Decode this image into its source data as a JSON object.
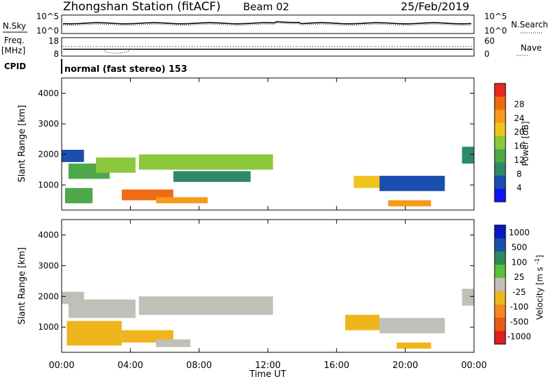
{
  "header": {
    "station": "Zhongshan Station (fitACF)",
    "beam": "Beam 02",
    "date": "25/Feb/2019"
  },
  "noise_panel": {
    "left_label": "N.Sky",
    "right_label": "N.Search",
    "left_ticks": [
      "10^5",
      "10^0"
    ],
    "right_ticks": [
      "10^5",
      "10^0"
    ]
  },
  "freq_panel": {
    "left_label_1": "Freq.",
    "left_label_2": "[MHz]",
    "right_label": "Nave",
    "left_ticks": [
      "18",
      "8"
    ],
    "right_ticks": [
      "60",
      "0"
    ]
  },
  "cpid": {
    "label": "CPID",
    "text": "normal (fast stereo) 153"
  },
  "x_axis": {
    "label": "Time UT",
    "ticks": [
      "00:00",
      "04:00",
      "08:00",
      "12:00",
      "16:00",
      "20:00",
      "00:00"
    ]
  },
  "colors": {
    "power": [
      "#0a14ff",
      "#1a4fb0",
      "#2e8a6a",
      "#4fa84a",
      "#8cc83c",
      "#f0c41e",
      "#f59a1a",
      "#f06a14",
      "#e8281e"
    ],
    "velocity": [
      "#0a18c8",
      "#1a50a8",
      "#2c8a5a",
      "#58c03c",
      "#c0c0b8",
      "#f0b41c",
      "#f08a1c",
      "#ea5a16",
      "#e01e1e"
    ]
  },
  "chart_data": [
    {
      "type": "heatmap",
      "ylabel": "Slant Range [km]",
      "xlabel": "Time UT",
      "ylim": [
        180,
        4500
      ],
      "xlim_hours": [
        0,
        24
      ],
      "yticks": [
        1000,
        2000,
        3000,
        4000
      ],
      "colorbar": {
        "label": "Power [dB]",
        "range": [
          0,
          30
        ],
        "ticks": [
          "4",
          "8",
          "12",
          "16",
          "20",
          "24",
          "28"
        ]
      },
      "regions": [
        {
          "t0": 0.0,
          "t1": 1.3,
          "r0": 1750,
          "r1": 2150,
          "value": 6
        },
        {
          "t0": 0.4,
          "t1": 2.8,
          "r0": 1200,
          "r1": 1700,
          "value": 12
        },
        {
          "t0": 2.0,
          "t1": 4.3,
          "r0": 1400,
          "r1": 1900,
          "value": 16
        },
        {
          "t0": 0.2,
          "t1": 1.8,
          "r0": 400,
          "r1": 900,
          "value": 12
        },
        {
          "t0": 3.5,
          "t1": 6.5,
          "r0": 500,
          "r1": 850,
          "value": 26
        },
        {
          "t0": 5.5,
          "t1": 8.5,
          "r0": 400,
          "r1": 600,
          "value": 22
        },
        {
          "t0": 4.5,
          "t1": 12.3,
          "r0": 1500,
          "r1": 2000,
          "value": 14
        },
        {
          "t0": 6.5,
          "t1": 11.0,
          "r0": 1100,
          "r1": 1450,
          "value": 8
        },
        {
          "t0": 17.0,
          "t1": 18.8,
          "r0": 900,
          "r1": 1300,
          "value": 18
        },
        {
          "t0": 18.5,
          "t1": 22.3,
          "r0": 800,
          "r1": 1300,
          "value": 6
        },
        {
          "t0": 19.0,
          "t1": 21.5,
          "r0": 300,
          "r1": 500,
          "value": 22
        },
        {
          "t0": 23.3,
          "t1": 24.0,
          "r0": 1700,
          "r1": 2250,
          "value": 8
        }
      ]
    },
    {
      "type": "heatmap",
      "ylabel": "Slant Range [km]",
      "xlabel": "Time UT",
      "ylim": [
        180,
        4500
      ],
      "xlim_hours": [
        0,
        24
      ],
      "yticks": [
        1000,
        2000,
        3000,
        4000
      ],
      "colorbar": {
        "label": "Velocity [m s^-1]",
        "range": [
          -1500,
          1500
        ],
        "ticks": [
          "1000",
          "500",
          "100",
          "25",
          "-25",
          "-100",
          "-500",
          "-1000"
        ]
      },
      "regions": [
        {
          "t0": 0.0,
          "t1": 1.3,
          "r0": 1750,
          "r1": 2150,
          "value": 0
        },
        {
          "t0": 0.4,
          "t1": 4.3,
          "r0": 1300,
          "r1": 1900,
          "value": 0
        },
        {
          "t0": 0.3,
          "t1": 3.5,
          "r0": 400,
          "r1": 1200,
          "value": -300
        },
        {
          "t0": 3.5,
          "t1": 6.5,
          "r0": 500,
          "r1": 900,
          "value": -300
        },
        {
          "t0": 5.5,
          "t1": 7.5,
          "r0": 350,
          "r1": 600,
          "value": 150
        },
        {
          "t0": 4.5,
          "t1": 12.3,
          "r0": 1400,
          "r1": 2000,
          "value": 0
        },
        {
          "t0": 16.5,
          "t1": 18.5,
          "r0": 900,
          "r1": 1400,
          "value": -300
        },
        {
          "t0": 18.5,
          "t1": 22.3,
          "r0": 800,
          "r1": 1300,
          "value": 0
        },
        {
          "t0": 19.5,
          "t1": 21.5,
          "r0": 300,
          "r1": 500,
          "value": -300
        },
        {
          "t0": 23.3,
          "t1": 24.0,
          "r0": 1700,
          "r1": 2250,
          "value": 0
        }
      ]
    }
  ]
}
